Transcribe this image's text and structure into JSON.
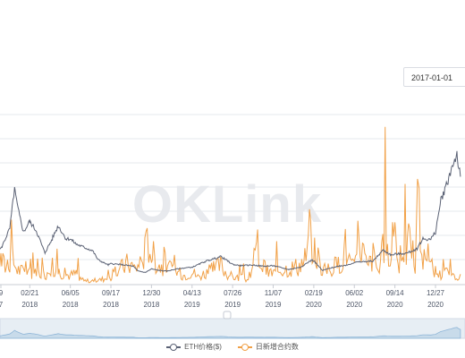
{
  "date_range": {
    "start": "2017-01-01"
  },
  "watermark": "OKLink",
  "legend": {
    "price_label": "ETH价格($)",
    "contracts_label": "日新增合约数"
  },
  "colors": {
    "price": "#5b6275",
    "contracts": "#f1a148",
    "grid": "#e6e8ec",
    "axis": "#4e5667",
    "navigator": "#8fb6d8"
  },
  "chart_data": {
    "type": "line",
    "title": "",
    "x_ticks": [
      {
        "date": "2017-12-09",
        "label": [
          "9",
          "7"
        ]
      },
      {
        "date": "2018-02-21",
        "label": [
          "02/21",
          "2018"
        ]
      },
      {
        "date": "2018-06-05",
        "label": [
          "06/05",
          "2018"
        ]
      },
      {
        "date": "2018-09-17",
        "label": [
          "09/17",
          "2018"
        ]
      },
      {
        "date": "2018-12-30",
        "label": [
          "12/30",
          "2018"
        ]
      },
      {
        "date": "2019-04-13",
        "label": [
          "04/13",
          "2019"
        ]
      },
      {
        "date": "2019-07-26",
        "label": [
          "07/26",
          "2019"
        ]
      },
      {
        "date": "2019-11-07",
        "label": [
          "11/07",
          "2019"
        ]
      },
      {
        "date": "2020-02-19",
        "label": [
          "02/19",
          "2020"
        ]
      },
      {
        "date": "2020-06-02",
        "label": [
          "06/02",
          "2020"
        ]
      },
      {
        "date": "2020-09-14",
        "label": [
          "09/14",
          "2020"
        ]
      },
      {
        "date": "2020-12-27",
        "label": [
          "12/27",
          "2020"
        ]
      }
    ],
    "series": [
      {
        "name": "ETH价格($)",
        "axis": "price",
        "points": [
          [
            "2017-11-15",
            330
          ],
          [
            "2017-12-10",
            460
          ],
          [
            "2018-01-01",
            760
          ],
          [
            "2018-01-13",
            1380
          ],
          [
            "2018-01-22",
            1050
          ],
          [
            "2018-02-05",
            700
          ],
          [
            "2018-02-21",
            870
          ],
          [
            "2018-03-10",
            720
          ],
          [
            "2018-04-01",
            380
          ],
          [
            "2018-04-20",
            600
          ],
          [
            "2018-05-05",
            800
          ],
          [
            "2018-05-25",
            600
          ],
          [
            "2018-06-05",
            600
          ],
          [
            "2018-06-20",
            520
          ],
          [
            "2018-07-10",
            470
          ],
          [
            "2018-08-01",
            420
          ],
          [
            "2018-08-15",
            280
          ],
          [
            "2018-09-10",
            200
          ],
          [
            "2018-09-17",
            220
          ],
          [
            "2018-10-15",
            205
          ],
          [
            "2018-11-14",
            180
          ],
          [
            "2018-11-25",
            110
          ],
          [
            "2018-12-15",
            85
          ],
          [
            "2018-12-30",
            140
          ],
          [
            "2019-01-15",
            120
          ],
          [
            "2019-02-08",
            105
          ],
          [
            "2019-03-01",
            135
          ],
          [
            "2019-04-01",
            160
          ],
          [
            "2019-04-13",
            165
          ],
          [
            "2019-05-15",
            250
          ],
          [
            "2019-06-26",
            330
          ],
          [
            "2019-07-26",
            210
          ],
          [
            "2019-08-15",
            190
          ],
          [
            "2019-09-15",
            200
          ],
          [
            "2019-10-15",
            180
          ],
          [
            "2019-11-07",
            190
          ],
          [
            "2019-12-17",
            130
          ],
          [
            "2020-01-15",
            165
          ],
          [
            "2020-02-14",
            275
          ],
          [
            "2020-02-19",
            265
          ],
          [
            "2020-03-12",
            115
          ],
          [
            "2020-03-20",
            130
          ],
          [
            "2020-04-20",
            180
          ],
          [
            "2020-05-15",
            200
          ],
          [
            "2020-06-02",
            240
          ],
          [
            "2020-07-20",
            260
          ],
          [
            "2020-08-15",
            430
          ],
          [
            "2020-09-05",
            350
          ],
          [
            "2020-09-14",
            365
          ],
          [
            "2020-10-15",
            380
          ],
          [
            "2020-11-10",
            450
          ],
          [
            "2020-11-25",
            600
          ],
          [
            "2020-12-15",
            590
          ],
          [
            "2020-12-27",
            700
          ],
          [
            "2021-01-10",
            1200
          ],
          [
            "2021-01-20",
            1350
          ],
          [
            "2021-02-05",
            1650
          ],
          [
            "2021-02-20",
            1900
          ],
          [
            "2021-03-01",
            1550
          ]
        ]
      },
      {
        "name": "日新增合约数",
        "axis": "contracts",
        "points": [
          [
            "2017-11-15",
            3200
          ],
          [
            "2017-12-09",
            4800
          ],
          [
            "2017-12-20",
            3600
          ],
          [
            "2018-01-05",
            5200
          ],
          [
            "2018-01-20",
            3000
          ],
          [
            "2018-02-05",
            2500
          ],
          [
            "2018-02-21",
            2200
          ],
          [
            "2018-03-10",
            2400
          ],
          [
            "2018-04-01",
            2000
          ],
          [
            "2018-04-20",
            3400
          ],
          [
            "2018-05-05",
            2600
          ],
          [
            "2018-05-25",
            2000
          ],
          [
            "2018-06-05",
            1800
          ],
          [
            "2018-06-20",
            2200
          ],
          [
            "2018-07-10",
            800
          ],
          [
            "2018-08-01",
            600
          ],
          [
            "2018-08-20",
            900
          ],
          [
            "2018-09-17",
            1500
          ],
          [
            "2018-10-10",
            3000
          ],
          [
            "2018-11-01",
            4200
          ],
          [
            "2018-11-20",
            3000
          ],
          [
            "2018-12-10",
            5500
          ],
          [
            "2018-12-23",
            8800
          ],
          [
            "2018-12-30",
            6400
          ],
          [
            "2019-01-10",
            4800
          ],
          [
            "2019-01-25",
            3400
          ],
          [
            "2019-02-15",
            3000
          ],
          [
            "2019-03-05",
            2400
          ],
          [
            "2019-03-25",
            1800
          ],
          [
            "2019-04-13",
            2600
          ],
          [
            "2019-04-28",
            1500
          ],
          [
            "2019-05-15",
            2200
          ],
          [
            "2019-06-05",
            2800
          ],
          [
            "2019-06-25",
            3800
          ],
          [
            "2019-07-10",
            2200
          ],
          [
            "2019-07-26",
            1500
          ],
          [
            "2019-08-20",
            1200
          ],
          [
            "2019-09-10",
            900
          ],
          [
            "2019-09-28",
            7600
          ],
          [
            "2019-10-05",
            4400
          ],
          [
            "2019-10-20",
            2600
          ],
          [
            "2019-11-07",
            2200
          ],
          [
            "2019-11-25",
            3000
          ],
          [
            "2019-12-20",
            3200
          ],
          [
            "2020-01-10",
            3600
          ],
          [
            "2020-01-25",
            4500
          ],
          [
            "2020-02-05",
            6400
          ],
          [
            "2020-02-15",
            9100
          ],
          [
            "2020-02-19",
            6700
          ],
          [
            "2020-03-01",
            5300
          ],
          [
            "2020-03-15",
            2600
          ],
          [
            "2020-04-05",
            3100
          ],
          [
            "2020-04-25",
            4000
          ],
          [
            "2020-05-10",
            7500
          ],
          [
            "2020-05-20",
            4700
          ],
          [
            "2020-06-02",
            3000
          ],
          [
            "2020-06-20",
            8200
          ],
          [
            "2020-07-05",
            3100
          ],
          [
            "2020-07-20",
            5600
          ],
          [
            "2020-08-05",
            2400
          ],
          [
            "2020-08-20",
            9300
          ],
          [
            "2020-09-02",
            3300
          ],
          [
            "2020-09-14",
            12000
          ],
          [
            "2020-09-25",
            4000
          ],
          [
            "2020-10-10",
            6800
          ],
          [
            "2020-10-25",
            9600
          ],
          [
            "2020-11-05",
            2800
          ],
          [
            "2020-11-15",
            18600
          ],
          [
            "2020-11-22",
            5100
          ],
          [
            "2020-12-05",
            4300
          ],
          [
            "2020-12-15",
            3600
          ],
          [
            "2020-12-27",
            2600
          ],
          [
            "2021-01-10",
            1800
          ],
          [
            "2021-01-25",
            2300
          ],
          [
            "2021-02-10",
            1400
          ],
          [
            "2021-02-25",
            1900
          ],
          [
            "2021-03-01",
            1600
          ]
        ]
      }
    ],
    "price_range": [
      -100,
      2500
    ],
    "contracts_range": [
      0,
      26000
    ],
    "grid": true,
    "legend_position": "bottom-center"
  }
}
